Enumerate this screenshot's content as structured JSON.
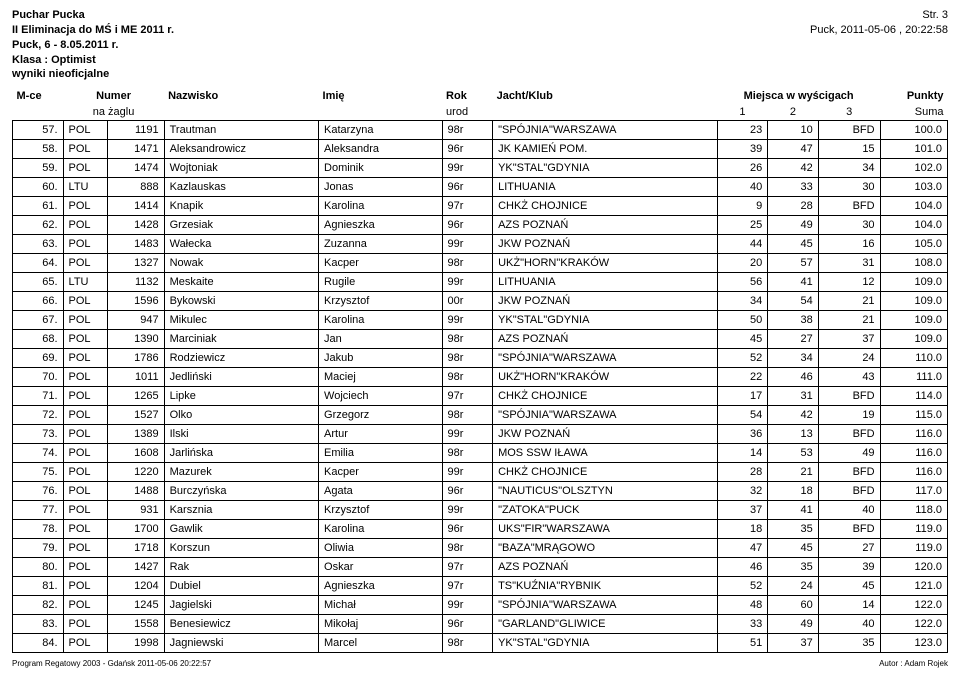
{
  "header": {
    "title1": "Puchar Pucka",
    "title2": "II Eliminacja do MŚ i ME 2011 r.",
    "title3": "Puck, 6 - 8.05.2011 r.",
    "klasa_label": "Klasa : Optimist",
    "wyniki_label": "wyniki nieoficjalne",
    "page_label": "Str. 3",
    "timestamp": "Puck, 2011-05-06 , 20:22:58"
  },
  "columns": {
    "mce": "M-ce",
    "numer": "Numer",
    "numer_sub": "na żaglu",
    "nazwisko": "Nazwisko",
    "imie": "Imię",
    "rok": "Rok",
    "rok_sub": "urod",
    "jacht": "Jacht/Klub",
    "miejsca": "Miejsca w wyścigach",
    "r1": "1",
    "r2": "2",
    "r3": "3",
    "punkty": "Punkty",
    "suma": "Suma"
  },
  "rows": [
    {
      "m": "57.",
      "nat": "POL",
      "num": "1191",
      "last": "Trautman",
      "first": "Katarzyna",
      "yr": "98r",
      "club": "\"SPÓJNIA\"WARSZAWA",
      "r1": "23",
      "r2": "10",
      "r3": "BFD",
      "sum": "100.0"
    },
    {
      "m": "58.",
      "nat": "POL",
      "num": "1471",
      "last": "Aleksandrowicz",
      "first": "Aleksandra",
      "yr": "96r",
      "club": "JK KAMIEŃ POM.",
      "r1": "39",
      "r2": "47",
      "r3": "15",
      "sum": "101.0"
    },
    {
      "m": "59.",
      "nat": "POL",
      "num": "1474",
      "last": "Wojtoniak",
      "first": "Dominik",
      "yr": "99r",
      "club": "YK\"STAL\"GDYNIA",
      "r1": "26",
      "r2": "42",
      "r3": "34",
      "sum": "102.0"
    },
    {
      "m": "60.",
      "nat": "LTU",
      "num": "888",
      "last": "Kazlauskas",
      "first": "Jonas",
      "yr": "96r",
      "club": "LITHUANIA",
      "r1": "40",
      "r2": "33",
      "r3": "30",
      "sum": "103.0"
    },
    {
      "m": "61.",
      "nat": "POL",
      "num": "1414",
      "last": "Knapik",
      "first": "Karolina",
      "yr": "97r",
      "club": "CHKŻ CHOJNICE",
      "r1": "9",
      "r2": "28",
      "r3": "BFD",
      "sum": "104.0"
    },
    {
      "m": "62.",
      "nat": "POL",
      "num": "1428",
      "last": "Grzesiak",
      "first": "Agnieszka",
      "yr": "96r",
      "club": "AZS POZNAŃ",
      "r1": "25",
      "r2": "49",
      "r3": "30",
      "sum": "104.0"
    },
    {
      "m": "63.",
      "nat": "POL",
      "num": "1483",
      "last": "Wałecka",
      "first": "Zuzanna",
      "yr": "99r",
      "club": "JKW POZNAŃ",
      "r1": "44",
      "r2": "45",
      "r3": "16",
      "sum": "105.0"
    },
    {
      "m": "64.",
      "nat": "POL",
      "num": "1327",
      "last": "Nowak",
      "first": "Kacper",
      "yr": "98r",
      "club": "UKŻ\"HORN\"KRAKÓW",
      "r1": "20",
      "r2": "57",
      "r3": "31",
      "sum": "108.0"
    },
    {
      "m": "65.",
      "nat": "LTU",
      "num": "1132",
      "last": "Meskaite",
      "first": "Rugile",
      "yr": "99r",
      "club": "LITHUANIA",
      "r1": "56",
      "r2": "41",
      "r3": "12",
      "sum": "109.0"
    },
    {
      "m": "66.",
      "nat": "POL",
      "num": "1596",
      "last": "Bykowski",
      "first": "Krzysztof",
      "yr": "00r",
      "club": "JKW POZNAŃ",
      "r1": "34",
      "r2": "54",
      "r3": "21",
      "sum": "109.0"
    },
    {
      "m": "67.",
      "nat": "POL",
      "num": "947",
      "last": "Mikulec",
      "first": "Karolina",
      "yr": "99r",
      "club": "YK\"STAL\"GDYNIA",
      "r1": "50",
      "r2": "38",
      "r3": "21",
      "sum": "109.0"
    },
    {
      "m": "68.",
      "nat": "POL",
      "num": "1390",
      "last": "Marciniak",
      "first": "Jan",
      "yr": "98r",
      "club": "AZS POZNAŃ",
      "r1": "45",
      "r2": "27",
      "r3": "37",
      "sum": "109.0"
    },
    {
      "m": "69.",
      "nat": "POL",
      "num": "1786",
      "last": "Rodziewicz",
      "first": "Jakub",
      "yr": "98r",
      "club": "\"SPÓJNIA\"WARSZAWA",
      "r1": "52",
      "r2": "34",
      "r3": "24",
      "sum": "110.0"
    },
    {
      "m": "70.",
      "nat": "POL",
      "num": "1011",
      "last": "Jedliński",
      "first": "Maciej",
      "yr": "98r",
      "club": "UKŻ\"HORN\"KRAKÓW",
      "r1": "22",
      "r2": "46",
      "r3": "43",
      "sum": "111.0"
    },
    {
      "m": "71.",
      "nat": "POL",
      "num": "1265",
      "last": "Lipke",
      "first": "Wojciech",
      "yr": "97r",
      "club": "CHKŻ CHOJNICE",
      "r1": "17",
      "r2": "31",
      "r3": "BFD",
      "sum": "114.0"
    },
    {
      "m": "72.",
      "nat": "POL",
      "num": "1527",
      "last": "Olko",
      "first": "Grzegorz",
      "yr": "98r",
      "club": "\"SPÓJNIA\"WARSZAWA",
      "r1": "54",
      "r2": "42",
      "r3": "19",
      "sum": "115.0"
    },
    {
      "m": "73.",
      "nat": "POL",
      "num": "1389",
      "last": "Ilski",
      "first": "Artur",
      "yr": "99r",
      "club": "JKW POZNAŃ",
      "r1": "36",
      "r2": "13",
      "r3": "BFD",
      "sum": "116.0"
    },
    {
      "m": "74.",
      "nat": "POL",
      "num": "1608",
      "last": "Jarlińska",
      "first": "Emilia",
      "yr": "98r",
      "club": "MOS SSW IŁAWA",
      "r1": "14",
      "r2": "53",
      "r3": "49",
      "sum": "116.0"
    },
    {
      "m": "75.",
      "nat": "POL",
      "num": "1220",
      "last": "Mazurek",
      "first": "Kacper",
      "yr": "99r",
      "club": "CHKŻ CHOJNICE",
      "r1": "28",
      "r2": "21",
      "r3": "BFD",
      "sum": "116.0"
    },
    {
      "m": "76.",
      "nat": "POL",
      "num": "1488",
      "last": "Burczyńska",
      "first": "Agata",
      "yr": "96r",
      "club": "\"NAUTICUS\"OLSZTYN",
      "r1": "32",
      "r2": "18",
      "r3": "BFD",
      "sum": "117.0"
    },
    {
      "m": "77.",
      "nat": "POL",
      "num": "931",
      "last": "Karsznia",
      "first": "Krzysztof",
      "yr": "99r",
      "club": "\"ZATOKA\"PUCK",
      "r1": "37",
      "r2": "41",
      "r3": "40",
      "sum": "118.0"
    },
    {
      "m": "78.",
      "nat": "POL",
      "num": "1700",
      "last": "Gawlik",
      "first": "Karolina",
      "yr": "96r",
      "club": "UKS\"FIR\"WARSZAWA",
      "r1": "18",
      "r2": "35",
      "r3": "BFD",
      "sum": "119.0"
    },
    {
      "m": "79.",
      "nat": "POL",
      "num": "1718",
      "last": "Korszun",
      "first": "Oliwia",
      "yr": "98r",
      "club": "\"BAZA\"MRĄGOWO",
      "r1": "47",
      "r2": "45",
      "r3": "27",
      "sum": "119.0"
    },
    {
      "m": "80.",
      "nat": "POL",
      "num": "1427",
      "last": "Rak",
      "first": "Oskar",
      "yr": "97r",
      "club": "AZS POZNAŃ",
      "r1": "46",
      "r2": "35",
      "r3": "39",
      "sum": "120.0"
    },
    {
      "m": "81.",
      "nat": "POL",
      "num": "1204",
      "last": "Dubiel",
      "first": "Agnieszka",
      "yr": "97r",
      "club": "TS\"KUŹNIA\"RYBNIK",
      "r1": "52",
      "r2": "24",
      "r3": "45",
      "sum": "121.0"
    },
    {
      "m": "82.",
      "nat": "POL",
      "num": "1245",
      "last": "Jagielski",
      "first": "Michał",
      "yr": "99r",
      "club": "\"SPÓJNIA\"WARSZAWA",
      "r1": "48",
      "r2": "60",
      "r3": "14",
      "sum": "122.0"
    },
    {
      "m": "83.",
      "nat": "POL",
      "num": "1558",
      "last": "Benesiewicz",
      "first": "Mikołaj",
      "yr": "96r",
      "club": "\"GARLAND\"GLIWICE",
      "r1": "33",
      "r2": "49",
      "r3": "40",
      "sum": "122.0"
    },
    {
      "m": "84.",
      "nat": "POL",
      "num": "1998",
      "last": "Jagniewski",
      "first": "Marcel",
      "yr": "98r",
      "club": "YK\"STAL\"GDYNIA",
      "r1": "51",
      "r2": "37",
      "r3": "35",
      "sum": "123.0"
    }
  ],
  "footer": {
    "left": "Program Regatowy 2003 - Gdańsk 2011-05-06 20:22:57",
    "right": "Autor : Adam Rojek"
  }
}
